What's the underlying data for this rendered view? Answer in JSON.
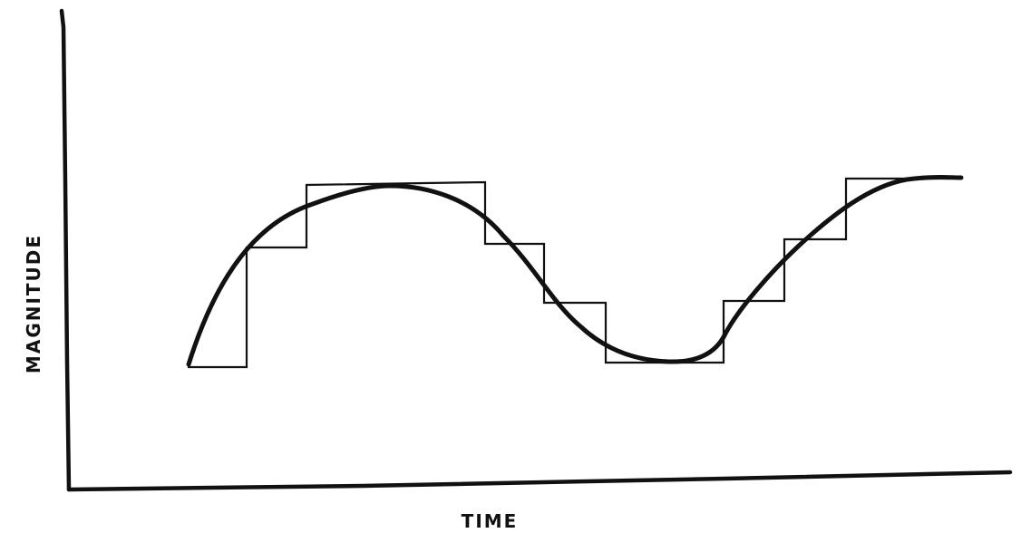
{
  "axes": {
    "xlabel": "TIME",
    "ylabel": "MAGNITUDE"
  },
  "colors": {
    "ink": "#111111",
    "background": "#ffffff"
  },
  "legend": "none",
  "grid": false
}
